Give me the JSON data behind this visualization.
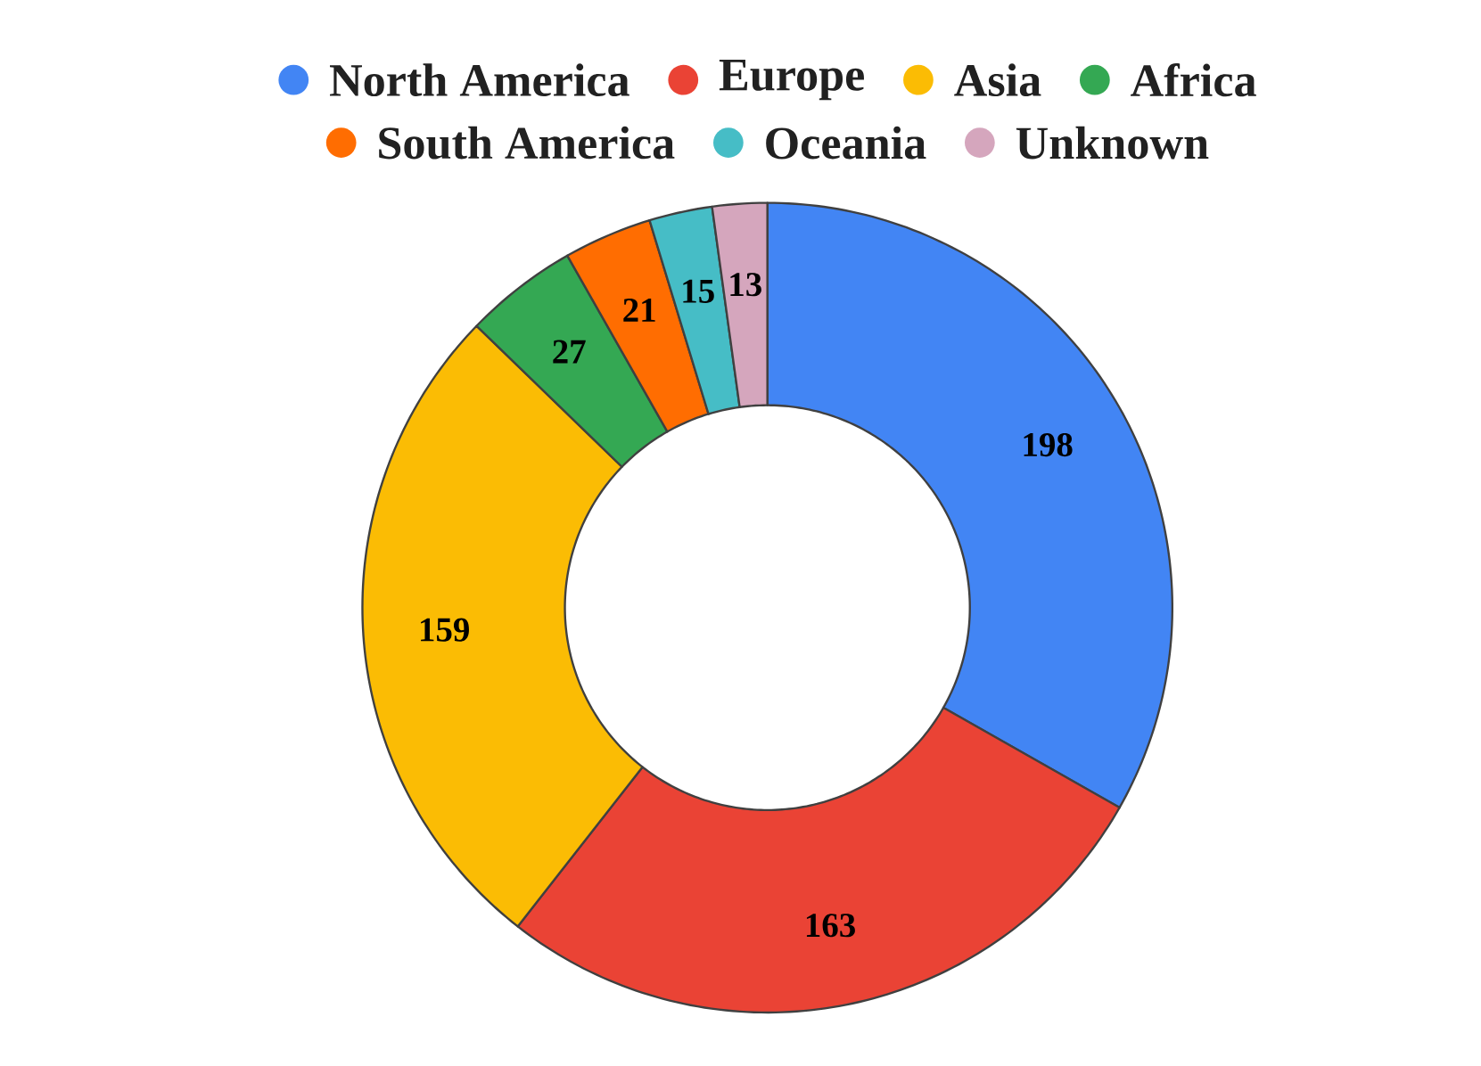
{
  "chart_data": {
    "type": "donut",
    "categories": [
      "North America",
      "Europe",
      "Asia",
      "Africa",
      "South America",
      "Oceania",
      "Unknown"
    ],
    "values": [
      198,
      163,
      159,
      27,
      21,
      15,
      13
    ],
    "colors": [
      "#4285f4",
      "#ea4335",
      "#fbbc04",
      "#34a853",
      "#ff6d01",
      "#46bdc6",
      "#d5a6bd"
    ],
    "data_labels": true,
    "legend": "top"
  }
}
